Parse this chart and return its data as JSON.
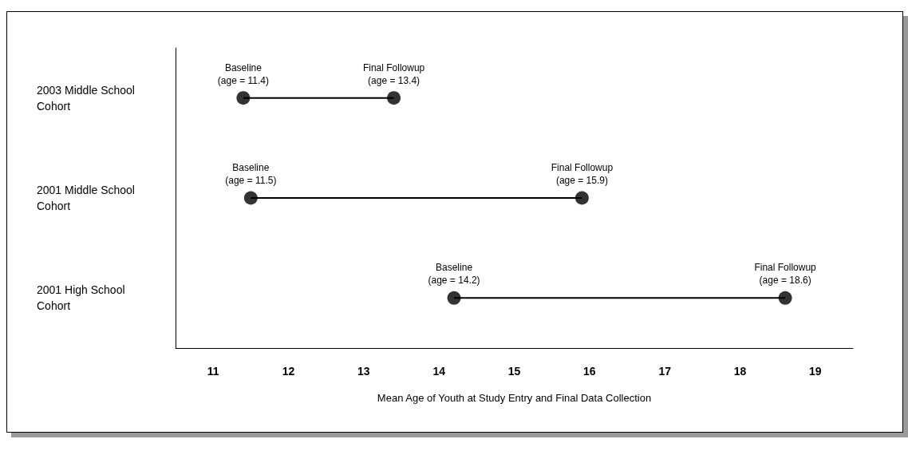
{
  "chart_data": {
    "type": "bar",
    "orientation": "horizontal",
    "xlabel": "Mean Age of Youth at Study Entry and Final Data Collection",
    "categories": [
      "2003 Middle School Cohort",
      "2001 Middle School Cohort",
      "2001 High School Cohort"
    ],
    "base": [
      11.4,
      11.5,
      14.2
    ],
    "values": [
      2.0,
      4.4,
      4.4
    ],
    "color": "#000000",
    "marker": "circle",
    "xlim": [
      10.5,
      19.5
    ],
    "xticks": [
      11,
      12,
      13,
      14,
      15,
      16,
      17,
      18,
      19
    ],
    "grid": false,
    "annotations": [
      {
        "text": "Baseline\n(age = 11.4)",
        "x": 11.4,
        "y": "2003 Middle School Cohort"
      },
      {
        "text": "Final Followup\n(age = 13.4)",
        "x": 13.4,
        "y": "2003 Middle School Cohort"
      },
      {
        "text": "Baseline\n(age = 11.5)",
        "x": 11.5,
        "y": "2001 Middle School Cohort"
      },
      {
        "text": "Final Followup\n(age = 15.9)",
        "x": 15.9,
        "y": "2001 Middle School Cohort"
      },
      {
        "text": "Baseline\n(age = 14.2)",
        "x": 14.2,
        "y": "2001 High School Cohort"
      },
      {
        "text": "Final Followup\n(age = 18.6)",
        "x": 18.6,
        "y": "2001 High School Cohort"
      }
    ]
  }
}
